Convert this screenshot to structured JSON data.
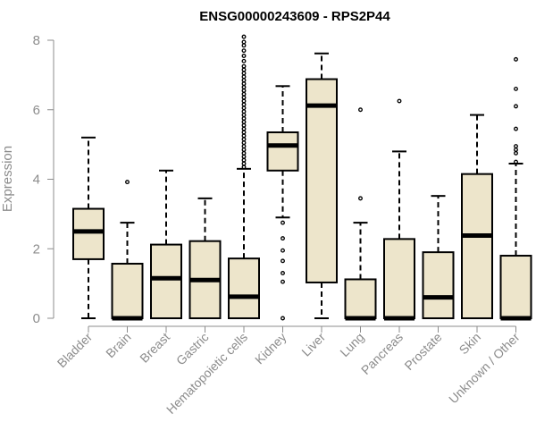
{
  "chart_data": {
    "type": "boxplot",
    "title": "ENSG00000243609 - RPS2P44",
    "xlabel": "",
    "ylabel": "Expression",
    "ylim": [
      0,
      8
    ],
    "yticks": [
      0,
      2,
      4,
      6,
      8
    ],
    "grid": false,
    "legend": "none",
    "box_fill": "#ede5cb",
    "stroke_color": "#000000",
    "axis_color": "#8c8c8c",
    "categories": [
      "Bladder",
      "Brain",
      "Breast",
      "Gastric",
      "Hematopoietic cells",
      "Kidney",
      "Liver",
      "Lung",
      "Pancreas",
      "Prostate",
      "Skin",
      "Unknown / Other"
    ],
    "boxes": [
      {
        "category": "Bladder",
        "whisker_low": 0.0,
        "q1": 1.7,
        "median": 2.5,
        "q3": 3.15,
        "whisker_high": 5.2,
        "outliers": []
      },
      {
        "category": "Brain",
        "whisker_low": 0.0,
        "q1": 0.0,
        "median": 0.0,
        "q3": 1.57,
        "whisker_high": 2.75,
        "outliers": [
          3.92
        ]
      },
      {
        "category": "Breast",
        "whisker_low": 0.0,
        "q1": 0.0,
        "median": 1.15,
        "q3": 2.12,
        "whisker_high": 4.25,
        "outliers": []
      },
      {
        "category": "Gastric",
        "whisker_low": 0.0,
        "q1": 0.0,
        "median": 1.1,
        "q3": 2.22,
        "whisker_high": 3.45,
        "outliers": []
      },
      {
        "category": "Hematopoietic cells",
        "whisker_low": 0.0,
        "q1": 0.0,
        "median": 0.62,
        "q3": 1.72,
        "whisker_high": 4.3,
        "outliers": [
          4.35,
          4.45,
          4.55,
          4.65,
          4.75,
          4.85,
          4.95,
          5.05,
          5.15,
          5.25,
          5.35,
          5.45,
          5.55,
          5.65,
          5.75,
          5.85,
          5.95,
          6.05,
          6.15,
          6.25,
          6.35,
          6.45,
          6.55,
          6.65,
          6.75,
          6.85,
          6.95,
          7.05,
          7.15,
          7.25,
          7.4,
          7.55,
          7.7,
          7.85,
          7.95,
          8.1
        ]
      },
      {
        "category": "Kidney",
        "whisker_low": 2.9,
        "q1": 4.25,
        "median": 4.97,
        "q3": 5.35,
        "whisker_high": 6.68,
        "outliers": [
          0.0,
          1.05,
          1.3,
          1.65,
          1.95,
          2.3,
          2.75
        ]
      },
      {
        "category": "Liver",
        "whisker_low": 0.0,
        "q1": 1.03,
        "median": 6.12,
        "q3": 6.88,
        "whisker_high": 7.62,
        "outliers": []
      },
      {
        "category": "Lung",
        "whisker_low": 0.0,
        "q1": 0.0,
        "median": 0.0,
        "q3": 1.12,
        "whisker_high": 2.75,
        "outliers": [
          3.45,
          6.0
        ]
      },
      {
        "category": "Pancreas",
        "whisker_low": 0.0,
        "q1": 0.0,
        "median": 0.0,
        "q3": 2.28,
        "whisker_high": 4.8,
        "outliers": [
          6.25
        ]
      },
      {
        "category": "Prostate",
        "whisker_low": 0.0,
        "q1": 0.0,
        "median": 0.6,
        "q3": 1.9,
        "whisker_high": 3.52,
        "outliers": []
      },
      {
        "category": "Skin",
        "whisker_low": 0.0,
        "q1": 0.0,
        "median": 2.38,
        "q3": 4.15,
        "whisker_high": 5.85,
        "outliers": []
      },
      {
        "category": "Unknown / Other",
        "whisker_low": 0.0,
        "q1": 0.0,
        "median": 0.0,
        "q3": 1.8,
        "whisker_high": 4.45,
        "outliers": [
          4.5,
          4.75,
          4.85,
          4.95,
          5.45,
          6.1,
          6.6,
          7.45
        ]
      }
    ]
  }
}
